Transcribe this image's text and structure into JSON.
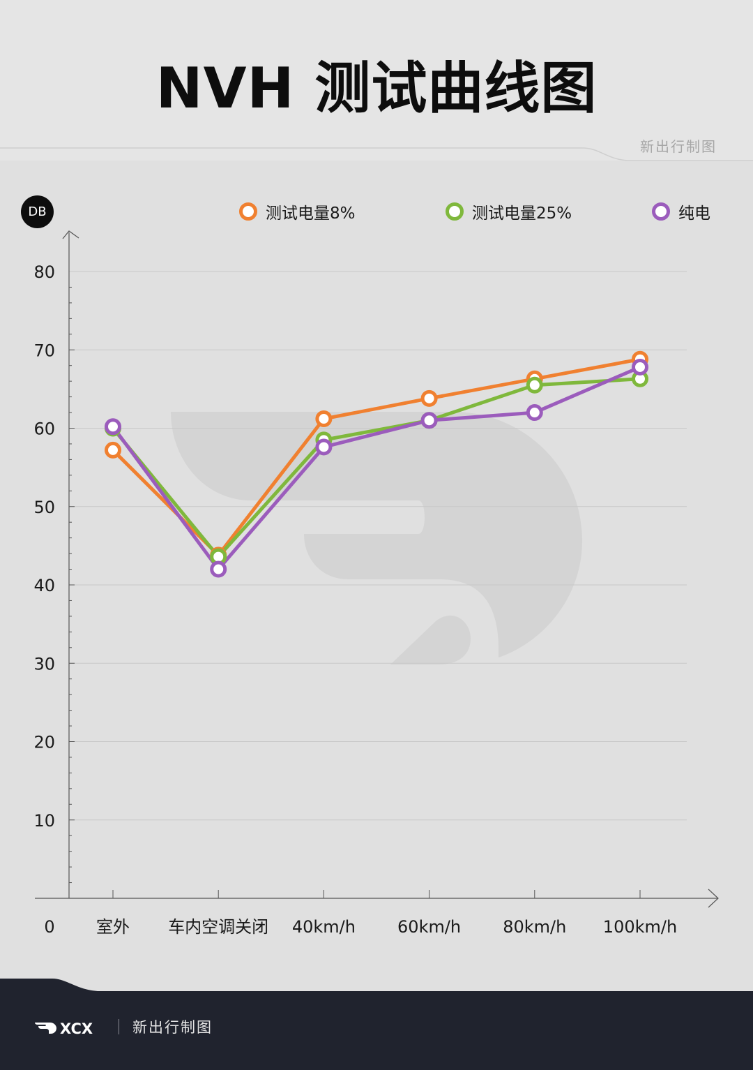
{
  "title": "NVH 测试曲线图",
  "brand_note": "新出行制图",
  "unit_badge": "DB",
  "footer": {
    "logo": "XCX",
    "text": "新出行制图"
  },
  "colors": {
    "orange": "#f08030",
    "green": "#7fb83c",
    "purple": "#9b5cbc",
    "axis": "#555555",
    "grid": "#c8c8c8"
  },
  "chart_data": {
    "type": "line",
    "title": "NVH 测试曲线图",
    "xlabel": "",
    "ylabel": "DB",
    "origin_label": "0",
    "categories": [
      "室外",
      "车内空调关闭",
      "40km/h",
      "60km/h",
      "80km/h",
      "100km/h"
    ],
    "ylim": [
      0,
      80
    ],
    "yticks": [
      10,
      20,
      30,
      40,
      50,
      60,
      70,
      80
    ],
    "grid": true,
    "legend_position": "top",
    "series": [
      {
        "name": "测试电量8%",
        "color": "#f08030",
        "values": [
          57.2,
          43.8,
          61.2,
          63.8,
          66.3,
          68.8
        ]
      },
      {
        "name": "测试电量25%",
        "color": "#7fb83c",
        "values": [
          60.0,
          43.6,
          58.5,
          61.0,
          65.5,
          66.3
        ]
      },
      {
        "name": "纯电",
        "color": "#9b5cbc",
        "values": [
          60.2,
          42.0,
          57.6,
          61.0,
          62.0,
          67.8
        ]
      }
    ]
  }
}
